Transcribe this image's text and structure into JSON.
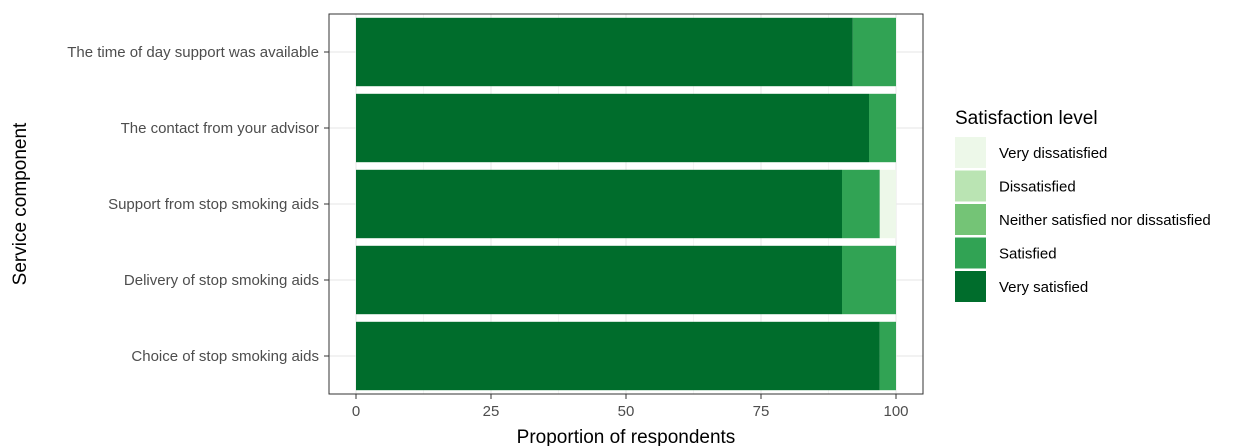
{
  "chart_data": {
    "type": "bar",
    "orientation": "horizontal",
    "stacked": true,
    "categories": [
      "The time of day support was available",
      "The contact from your advisor",
      "Support from stop smoking aids",
      "Delivery of stop smoking aids",
      "Choice of stop smoking aids"
    ],
    "series": [
      {
        "name": "Very satisfied",
        "color": "#006d2c",
        "values": [
          92,
          95,
          90,
          90,
          97
        ]
      },
      {
        "name": "Satisfied",
        "color": "#31a354",
        "values": [
          8,
          5,
          7,
          10,
          3
        ]
      },
      {
        "name": "Neither satisfied nor dissatisfied",
        "color": "#74c476",
        "values": [
          0,
          0,
          0,
          0,
          0
        ]
      },
      {
        "name": "Dissatisfied",
        "color": "#bae4b3",
        "values": [
          0,
          0,
          0,
          0,
          0
        ]
      },
      {
        "name": "Very dissatisfied",
        "color": "#edf8e9",
        "values": [
          0,
          0,
          3,
          0,
          0
        ]
      }
    ],
    "xlabel": "Proportion of respondents",
    "ylabel": "Service component",
    "xlim": [
      -5,
      105
    ],
    "xticks": [
      0,
      25,
      50,
      75,
      100
    ],
    "grid": true,
    "legend": {
      "title": "Satisfaction level",
      "position": "right",
      "order": [
        "Very dissatisfied",
        "Dissatisfied",
        "Neither satisfied nor dissatisfied",
        "Satisfied",
        "Very satisfied"
      ]
    }
  }
}
